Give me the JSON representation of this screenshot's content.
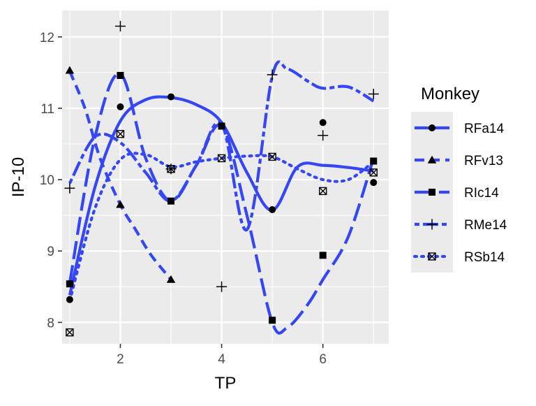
{
  "chart_data": {
    "type": "line",
    "xlabel": "TP",
    "ylabel": "IP-10",
    "xlim": [
      0.85,
      7.3
    ],
    "ylim": [
      7.7,
      12.37
    ],
    "x_ticks": [
      2,
      4,
      6
    ],
    "x_tick_labels": [
      "2",
      "4",
      "6"
    ],
    "y_ticks": [
      8,
      9,
      10,
      11,
      12
    ],
    "y_tick_labels": [
      "8",
      "9",
      "10",
      "11",
      "12"
    ],
    "legend": {
      "title": "Monkey",
      "position": "right"
    },
    "grid": true,
    "background": "#ebebeb",
    "line_color": "#3446f5",
    "series": [
      {
        "name": "RFa14",
        "linetype": "solid",
        "marker": "circle",
        "x": [
          1,
          2,
          3,
          5,
          6,
          7
        ],
        "y": [
          8.32,
          11.02,
          11.16,
          9.58,
          10.8,
          9.96
        ],
        "curve_x": [
          1,
          1.5,
          2,
          2.5,
          3,
          3.5,
          4,
          4.5,
          5,
          5.5,
          6,
          6.5,
          7
        ],
        "curve_y": [
          8.38,
          9.9,
          10.82,
          11.12,
          11.15,
          11.05,
          10.8,
          10.1,
          9.57,
          10.18,
          10.2,
          10.17,
          10.12
        ]
      },
      {
        "name": "RFv13",
        "linetype": "dashed",
        "marker": "triangle",
        "x": [
          1,
          2,
          3
        ],
        "y": [
          11.53,
          9.65,
          8.6
        ],
        "curve_x": [
          1,
          1.3,
          1.6,
          2,
          2.3,
          2.6,
          3
        ],
        "curve_y": [
          11.52,
          11.0,
          10.3,
          9.65,
          9.3,
          8.95,
          8.6
        ]
      },
      {
        "name": "RIc14",
        "linetype": "longdash",
        "marker": "square",
        "x": [
          1,
          2,
          3,
          4,
          5,
          6,
          7
        ],
        "y": [
          8.54,
          11.46,
          9.7,
          10.75,
          8.03,
          8.94,
          10.26
        ],
        "curve_x": [
          1,
          1.5,
          2,
          2.5,
          3,
          3.5,
          4,
          4.5,
          5,
          5.3,
          5.7,
          6,
          6.5,
          7
        ],
        "curve_y": [
          8.55,
          10.6,
          11.48,
          10.3,
          9.7,
          10.2,
          10.75,
          9.5,
          8.0,
          7.93,
          8.25,
          8.6,
          9.2,
          10.3
        ]
      },
      {
        "name": "RMe14",
        "linetype": "twodash",
        "marker": "plus",
        "x": [
          1,
          2,
          3,
          4,
          5,
          6,
          7
        ],
        "y": [
          9.88,
          12.15,
          10.15,
          8.5,
          11.47,
          10.62,
          11.2
        ],
        "curve_x": [
          1,
          1.5,
          2,
          2.5,
          3,
          3.5,
          4,
          4.5,
          5,
          5.3,
          5.7,
          6,
          6.5,
          7
        ],
        "curve_y": [
          9.95,
          10.6,
          10.52,
          10.1,
          9.7,
          10.2,
          10.78,
          9.3,
          11.45,
          11.55,
          11.38,
          11.28,
          11.3,
          11.1
        ]
      },
      {
        "name": "RSb14",
        "linetype": "dotted",
        "marker": "square-x",
        "x": [
          1,
          2,
          3,
          4,
          5,
          6,
          7
        ],
        "y": [
          7.86,
          10.64,
          10.15,
          10.3,
          10.32,
          9.84,
          10.1
        ],
        "curve_x": [
          1,
          1.5,
          2,
          2.5,
          3,
          3.5,
          4,
          4.5,
          5,
          5.5,
          6,
          6.5,
          7
        ],
        "curve_y": [
          8.3,
          9.6,
          10.28,
          10.35,
          10.18,
          10.25,
          10.3,
          10.33,
          10.32,
          10.15,
          10.0,
          10.0,
          10.25
        ]
      }
    ]
  }
}
